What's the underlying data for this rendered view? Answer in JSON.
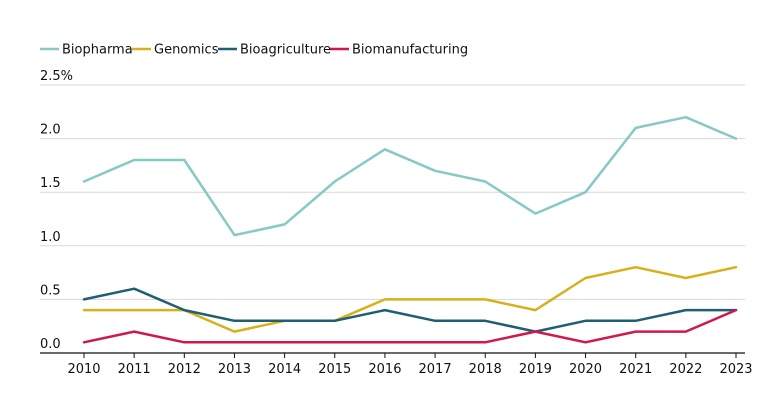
{
  "chart_data": {
    "type": "line",
    "title": "",
    "xlabel": "",
    "ylabel": "",
    "x": [
      "2010",
      "2011",
      "2012",
      "2013",
      "2014",
      "2015",
      "2016",
      "2017",
      "2018",
      "2019",
      "2020",
      "2021",
      "2022",
      "2023"
    ],
    "yticks": [
      "0.0",
      "0.5",
      "1.0",
      "1.5",
      "2.0",
      "2.5%"
    ],
    "ylim": [
      0,
      2.5
    ],
    "grid": true,
    "legend": "top-left",
    "series": [
      {
        "name": "Biopharma",
        "color": "#86c9c6",
        "values": [
          1.6,
          1.8,
          1.8,
          1.1,
          1.2,
          1.6,
          1.9,
          1.7,
          1.6,
          1.3,
          1.5,
          2.1,
          2.2,
          2.0
        ]
      },
      {
        "name": "Genomics",
        "color": "#d6b11c",
        "values": [
          0.4,
          0.4,
          0.4,
          0.2,
          0.3,
          0.3,
          0.5,
          0.5,
          0.5,
          0.4,
          0.7,
          0.8,
          0.7,
          0.8
        ]
      },
      {
        "name": "Bioagriculture",
        "color": "#1f5e73",
        "values": [
          0.5,
          0.6,
          0.4,
          0.3,
          0.3,
          0.3,
          0.4,
          0.3,
          0.3,
          0.2,
          0.3,
          0.3,
          0.4,
          0.4
        ]
      },
      {
        "name": "Biomanufacturing",
        "color": "#d0174f",
        "values": [
          0.1,
          0.2,
          0.1,
          0.1,
          0.1,
          0.1,
          0.1,
          0.1,
          0.1,
          0.2,
          0.1,
          0.2,
          0.2,
          0.4
        ]
      }
    ]
  }
}
